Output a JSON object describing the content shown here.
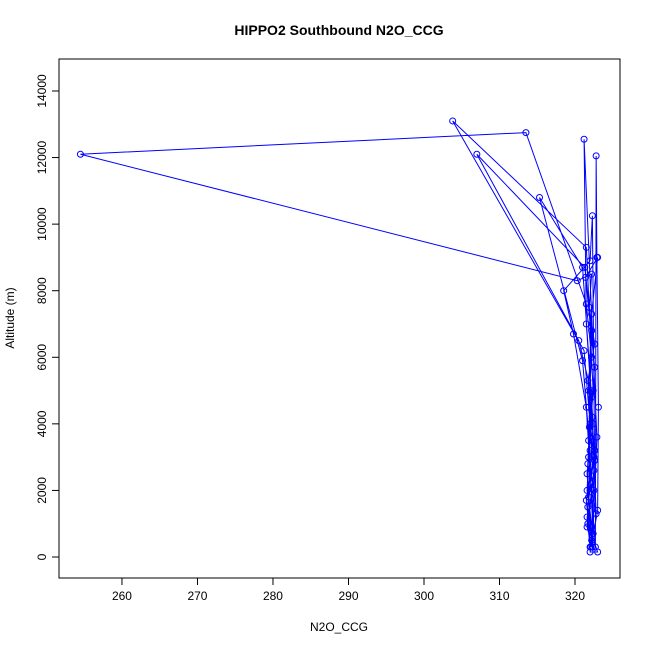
{
  "chart_data": {
    "type": "line",
    "title": "HIPPO2 Southbound N2O_CCG",
    "x_label": "N2O_CCG",
    "y_label": "Altitude (m)",
    "color": "#0000ff",
    "markers": true,
    "x": [
      322.0,
      321.6,
      322.5,
      321.8,
      322.3,
      321.7,
      322.6,
      321.9,
      322.2,
      320.3,
      254.5,
      313.5,
      321.5,
      322.2,
      321.8,
      322.5,
      321.7,
      322.3,
      321.6,
      322.4,
      321.5,
      303.8,
      321.2,
      322.0,
      321.6,
      322.4,
      321.8,
      322.2,
      321.3,
      307.0,
      320.5,
      322.1,
      321.7,
      322.8,
      322.2,
      321.0,
      315.3,
      321.0,
      322.0,
      321.6,
      322.3,
      322.9,
      321.2,
      321.5,
      322.4,
      321.8,
      322.2,
      322.6,
      322.3,
      322.0,
      318.5,
      319.8,
      321.5,
      322.1,
      322.7,
      322.8,
      322.9,
      323.1,
      323.0,
      322.0,
      323.0,
      321.7,
      322.5,
      321.9,
      322.6,
      321.4,
      323.0,
      322.2,
      321.8,
      322.6,
      321.5,
      322.1
    ],
    "values": [
      300,
      1200,
      2000,
      3000,
      4200,
      5300,
      6400,
      7500,
      8500,
      8300,
      12100,
      12750,
      7600,
      6000,
      4500,
      3000,
      1500,
      300,
      2500,
      5000,
      9300,
      13100,
      6200,
      4000,
      2000,
      700,
      3500,
      6800,
      8700,
      12100,
      6500,
      5000,
      2800,
      1300,
      4800,
      8700,
      10800,
      5900,
      3200,
      900,
      300,
      3600,
      12550,
      7000,
      4000,
      1800,
      500,
      2900,
      10250,
      8900,
      8000,
      6700,
      4500,
      2200,
      300,
      12050,
      9000,
      4500,
      1400,
      150,
      150,
      1000,
      2600,
      3900,
      5700,
      8400,
      9000,
      7300,
      5000,
      3200,
      1700,
      300
    ],
    "xlim": [
      251.66,
      325.96
    ],
    "ylim": [
      -631,
      14961
    ],
    "xticks": [
      260,
      270,
      280,
      290,
      300,
      310,
      320
    ],
    "yticks": [
      0,
      2000,
      4000,
      6000,
      8000,
      10000,
      12000,
      14000
    ]
  }
}
